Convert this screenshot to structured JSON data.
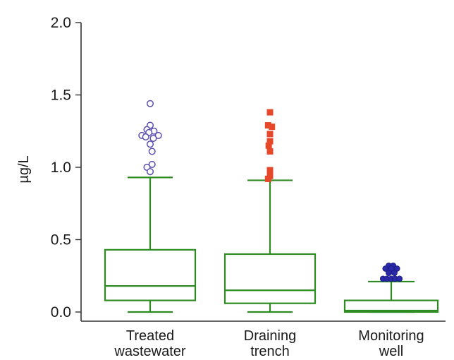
{
  "chart_data": {
    "type": "box",
    "title": "",
    "xlabel": "",
    "ylabel": "µg/L",
    "ylim": [
      0,
      2
    ],
    "yticks": [
      "0.0",
      "0.5",
      "1.0",
      "1.5",
      "2.0"
    ],
    "grid": false,
    "box_color": "#2e8b22",
    "categories": [
      {
        "label_lines": [
          "Treated",
          "wastewater"
        ],
        "whisker_low": 0.0,
        "q1": 0.08,
        "median": 0.18,
        "q3": 0.43,
        "whisker_high": 0.93,
        "outlier_marker": "open-circle",
        "outlier_color": "#5b4fb0",
        "outliers": [
          {
            "dx": 0.0,
            "y": 1.44
          },
          {
            "dx": 0.0,
            "y": 1.29
          },
          {
            "dx": -0.5,
            "y": 1.26
          },
          {
            "dx": 0.6,
            "y": 1.25
          },
          {
            "dx": -0.2,
            "y": 1.24
          },
          {
            "dx": -1.3,
            "y": 1.22
          },
          {
            "dx": 1.3,
            "y": 1.22
          },
          {
            "dx": -0.7,
            "y": 1.21
          },
          {
            "dx": 0.5,
            "y": 1.2
          },
          {
            "dx": 0.0,
            "y": 1.16
          },
          {
            "dx": 0.3,
            "y": 1.11
          },
          {
            "dx": 0.3,
            "y": 1.02
          },
          {
            "dx": -0.5,
            "y": 1.0
          },
          {
            "dx": 0.0,
            "y": 0.97
          }
        ]
      },
      {
        "label_lines": [
          "Draining",
          "trench"
        ],
        "whisker_low": 0.0,
        "q1": 0.06,
        "median": 0.15,
        "q3": 0.4,
        "whisker_high": 0.91,
        "outlier_marker": "filled-square",
        "outlier_color": "#e8482a",
        "outliers": [
          {
            "dx": 0.0,
            "y": 1.38
          },
          {
            "dx": -0.3,
            "y": 1.29
          },
          {
            "dx": 0.3,
            "y": 1.28
          },
          {
            "dx": 0.0,
            "y": 1.23
          },
          {
            "dx": 0.0,
            "y": 1.18
          },
          {
            "dx": -0.2,
            "y": 1.15
          },
          {
            "dx": 0.0,
            "y": 1.11
          },
          {
            "dx": 0.0,
            "y": 0.98
          },
          {
            "dx": 0.0,
            "y": 0.94
          },
          {
            "dx": -0.3,
            "y": 0.92
          }
        ]
      },
      {
        "label_lines": [
          "Monitoring",
          "well"
        ],
        "whisker_low": 0.0,
        "q1": 0.0,
        "median": 0.01,
        "q3": 0.08,
        "whisker_high": 0.21,
        "outlier_marker": "filled-circle",
        "outlier_color": "#2a2aa8",
        "outliers": [
          {
            "dx": -0.4,
            "y": 0.32
          },
          {
            "dx": 0.3,
            "y": 0.32
          },
          {
            "dx": -0.9,
            "y": 0.3
          },
          {
            "dx": 0.0,
            "y": 0.3
          },
          {
            "dx": 0.9,
            "y": 0.3
          },
          {
            "dx": -0.4,
            "y": 0.27
          },
          {
            "dx": 0.5,
            "y": 0.27
          },
          {
            "dx": -1.3,
            "y": 0.23
          },
          {
            "dx": -0.7,
            "y": 0.23
          },
          {
            "dx": 0.0,
            "y": 0.23
          },
          {
            "dx": 0.6,
            "y": 0.23
          },
          {
            "dx": 1.3,
            "y": 0.23
          }
        ]
      }
    ]
  }
}
